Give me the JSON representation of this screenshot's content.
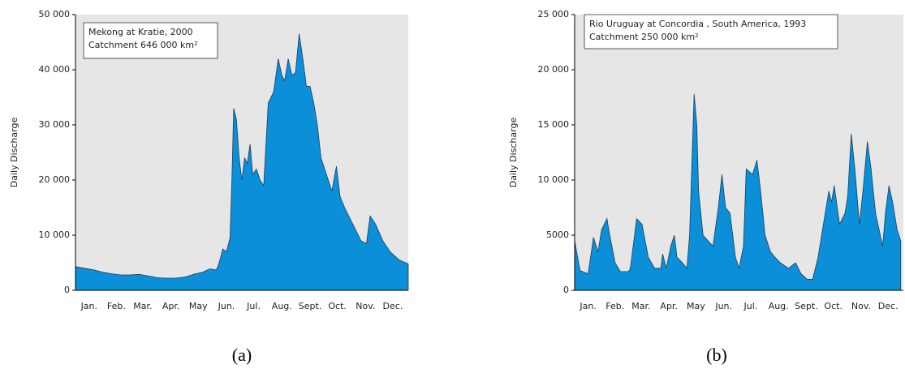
{
  "chart_data": [
    {
      "type": "area",
      "y_label": "Daily Discharge",
      "annotation": [
        "Mekong at Kratie, 2000",
        "Catchment 646 000 km²"
      ],
      "caption": "(a)",
      "color": "#0a8fd8",
      "plot_background": "#e6e6e6",
      "xlim": [
        0,
        366
      ],
      "xticks": [
        {
          "value": 15,
          "label": "Jan."
        },
        {
          "value": 45,
          "label": "Feb."
        },
        {
          "value": 74,
          "label": "Mar."
        },
        {
          "value": 105,
          "label": "Apr."
        },
        {
          "value": 135,
          "label": "May"
        },
        {
          "value": 166,
          "label": "Jun."
        },
        {
          "value": 196,
          "label": "Jul."
        },
        {
          "value": 227,
          "label": "Aug."
        },
        {
          "value": 258,
          "label": "Sept."
        },
        {
          "value": 288,
          "label": "Oct."
        },
        {
          "value": 319,
          "label": "Nov."
        },
        {
          "value": 349,
          "label": "Dec."
        }
      ],
      "ylim": [
        0,
        50000
      ],
      "yticks": [
        0,
        {
          "value": 10000,
          "label": "10 000"
        },
        {
          "value": 20000,
          "label": "20 000"
        },
        {
          "value": 30000,
          "label": "30 000"
        },
        {
          "value": 40000,
          "label": "40 000"
        },
        {
          "value": 50000,
          "label": "50 000"
        }
      ],
      "x": [
        0,
        10,
        20,
        30,
        40,
        50,
        60,
        70,
        80,
        90,
        100,
        110,
        120,
        130,
        140,
        148,
        155,
        158,
        162,
        166,
        170,
        172,
        174,
        177,
        180,
        183,
        186,
        189,
        192,
        195,
        199,
        203,
        207,
        212,
        218,
        223,
        227,
        230,
        234,
        238,
        242,
        246,
        250,
        254,
        258,
        262,
        266,
        270,
        276,
        282,
        287,
        291,
        296,
        302,
        308,
        314,
        320,
        324,
        330,
        338,
        346,
        356,
        366
      ],
      "values": [
        4300,
        4000,
        3700,
        3300,
        3000,
        2800,
        2800,
        2900,
        2600,
        2300,
        2200,
        2200,
        2400,
        2900,
        3300,
        3900,
        3700,
        5000,
        7500,
        7000,
        9500,
        20000,
        33000,
        31000,
        24000,
        20000,
        24000,
        23000,
        26500,
        21000,
        22000,
        20000,
        19000,
        34000,
        36000,
        42000,
        39000,
        38000,
        42000,
        39000,
        39500,
        46500,
        42000,
        37000,
        37000,
        34000,
        30000,
        24000,
        21000,
        18000,
        22500,
        17000,
        15000,
        13000,
        11000,
        9000,
        8500,
        13500,
        12000,
        9000,
        7000,
        5500,
        4800
      ]
    },
    {
      "type": "area",
      "y_label": "Daily Discharge",
      "annotation": [
        "Rio Uruguay at Concordia , South America, 1993",
        "Catchment 250 000 km²"
      ],
      "caption": "(b)",
      "color": "#0a8fd8",
      "plot_background": "#e6e6e6",
      "xlim": [
        0,
        366
      ],
      "xticks": [
        {
          "value": 15,
          "label": "Jan."
        },
        {
          "value": 45,
          "label": "Feb."
        },
        {
          "value": 74,
          "label": "Mar."
        },
        {
          "value": 105,
          "label": "Apr."
        },
        {
          "value": 135,
          "label": "May"
        },
        {
          "value": 166,
          "label": "Jun."
        },
        {
          "value": 196,
          "label": "Jul."
        },
        {
          "value": 227,
          "label": "Aug."
        },
        {
          "value": 258,
          "label": "Sept."
        },
        {
          "value": 288,
          "label": "Oct."
        },
        {
          "value": 319,
          "label": "Nov."
        },
        {
          "value": 349,
          "label": "Dec."
        }
      ],
      "ylim": [
        0,
        25000
      ],
      "yticks": [
        0,
        5000,
        {
          "value": 10000,
          "label": "10 000"
        },
        {
          "value": 15000,
          "label": "15 000"
        },
        {
          "value": 20000,
          "label": "20 000"
        },
        {
          "value": 25000,
          "label": "25 000"
        }
      ],
      "x": [
        0,
        6,
        15,
        21,
        26,
        30,
        36,
        39,
        45,
        51,
        60,
        62,
        69,
        75,
        82,
        89,
        96,
        98,
        102,
        107,
        111,
        114,
        120,
        125,
        128,
        133,
        136,
        138,
        143,
        154,
        160,
        164,
        168,
        173,
        179,
        183,
        188,
        191,
        198,
        203,
        207,
        212,
        218,
        223,
        229,
        238,
        246,
        252,
        259,
        265,
        271,
        277,
        283,
        286,
        289,
        295,
        301,
        304,
        308,
        312,
        317,
        321,
        326,
        330,
        335,
        343,
        346,
        350,
        354,
        359,
        363
      ],
      "values": [
        4500,
        1800,
        1500,
        4800,
        3500,
        5500,
        6500,
        5000,
        2500,
        1700,
        1700,
        2000,
        6500,
        6000,
        3000,
        2000,
        2000,
        3300,
        2000,
        4000,
        5000,
        3000,
        2500,
        2000,
        5000,
        17800,
        15000,
        9000,
        5000,
        4000,
        7500,
        10500,
        7500,
        7000,
        3000,
        2000,
        4000,
        11000,
        10500,
        11800,
        9000,
        5000,
        3500,
        3000,
        2500,
        2000,
        2500,
        1500,
        1000,
        1000,
        3000,
        6000,
        9000,
        8000,
        9500,
        6000,
        7000,
        8500,
        14200,
        11000,
        6000,
        9000,
        13500,
        11000,
        7000,
        4000,
        7000,
        9500,
        8000,
        5500,
        4500
      ]
    }
  ]
}
